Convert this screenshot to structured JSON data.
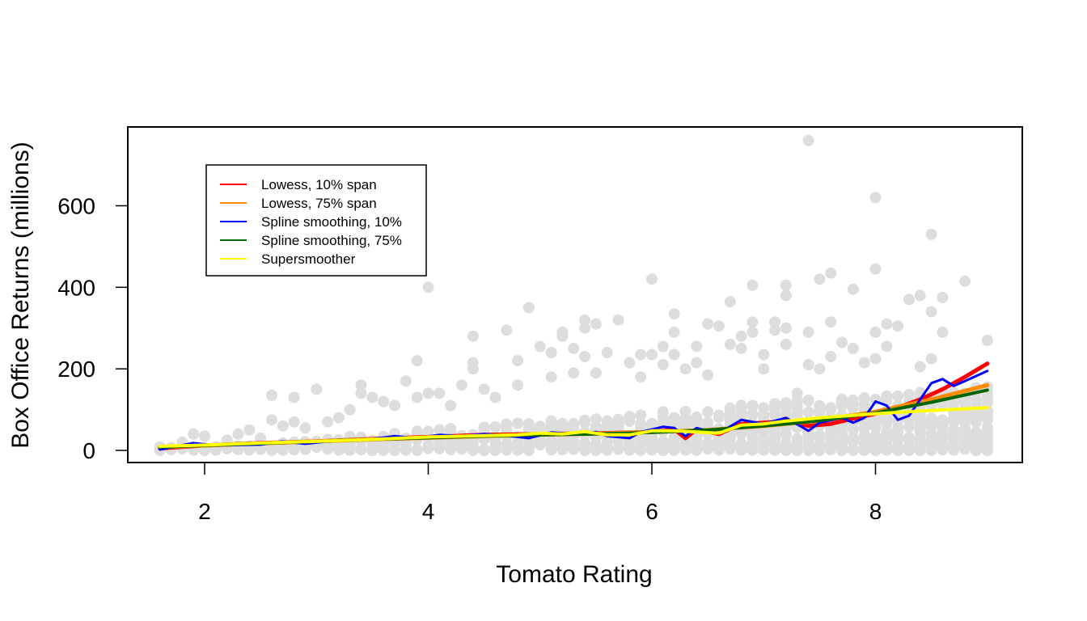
{
  "chart_data": {
    "type": "scatter",
    "title": "",
    "xlabel": "Tomato Rating",
    "ylabel": "Box Office Returns (millions)",
    "xlim": [
      1.3,
      9.5
    ],
    "ylim": [
      -30,
      790
    ],
    "xticks": [
      2,
      4,
      6,
      8
    ],
    "yticks": [
      0,
      200,
      400,
      600
    ],
    "grid": false,
    "legend_position": "top-left",
    "point_color": "#dddddd",
    "scatter_outliers": [
      {
        "x": 1.6,
        "y": 2
      },
      {
        "x": 1.8,
        "y": 20
      },
      {
        "x": 1.9,
        "y": 40
      },
      {
        "x": 2.0,
        "y": 35
      },
      {
        "x": 2.2,
        "y": 25
      },
      {
        "x": 2.3,
        "y": 40
      },
      {
        "x": 2.4,
        "y": 50
      },
      {
        "x": 2.5,
        "y": 30
      },
      {
        "x": 2.6,
        "y": 135
      },
      {
        "x": 2.6,
        "y": 75
      },
      {
        "x": 2.7,
        "y": 60
      },
      {
        "x": 2.8,
        "y": 130
      },
      {
        "x": 2.8,
        "y": 70
      },
      {
        "x": 2.9,
        "y": 55
      },
      {
        "x": 3.0,
        "y": 150
      },
      {
        "x": 3.1,
        "y": 70
      },
      {
        "x": 3.2,
        "y": 80
      },
      {
        "x": 3.3,
        "y": 100
      },
      {
        "x": 3.4,
        "y": 160
      },
      {
        "x": 3.4,
        "y": 140
      },
      {
        "x": 3.5,
        "y": 130
      },
      {
        "x": 3.6,
        "y": 120
      },
      {
        "x": 3.7,
        "y": 110
      },
      {
        "x": 3.8,
        "y": 170
      },
      {
        "x": 3.9,
        "y": 220
      },
      {
        "x": 3.9,
        "y": 130
      },
      {
        "x": 4.0,
        "y": 400
      },
      {
        "x": 4.0,
        "y": 140
      },
      {
        "x": 4.1,
        "y": 140
      },
      {
        "x": 4.2,
        "y": 110
      },
      {
        "x": 4.3,
        "y": 160
      },
      {
        "x": 4.4,
        "y": 280
      },
      {
        "x": 4.4,
        "y": 215
      },
      {
        "x": 4.4,
        "y": 200
      },
      {
        "x": 4.5,
        "y": 150
      },
      {
        "x": 4.6,
        "y": 130
      },
      {
        "x": 4.7,
        "y": 295
      },
      {
        "x": 4.8,
        "y": 220
      },
      {
        "x": 4.8,
        "y": 160
      },
      {
        "x": 4.9,
        "y": 350
      },
      {
        "x": 5.0,
        "y": 255
      },
      {
        "x": 5.1,
        "y": 240
      },
      {
        "x": 5.1,
        "y": 180
      },
      {
        "x": 5.2,
        "y": 290
      },
      {
        "x": 5.2,
        "y": 280
      },
      {
        "x": 5.3,
        "y": 250
      },
      {
        "x": 5.3,
        "y": 190
      },
      {
        "x": 5.4,
        "y": 320
      },
      {
        "x": 5.4,
        "y": 300
      },
      {
        "x": 5.4,
        "y": 230
      },
      {
        "x": 5.5,
        "y": 310
      },
      {
        "x": 5.5,
        "y": 190
      },
      {
        "x": 5.6,
        "y": 240
      },
      {
        "x": 5.7,
        "y": 320
      },
      {
        "x": 5.8,
        "y": 215
      },
      {
        "x": 5.9,
        "y": 235
      },
      {
        "x": 5.9,
        "y": 180
      },
      {
        "x": 6.0,
        "y": 420
      },
      {
        "x": 6.0,
        "y": 235
      },
      {
        "x": 6.1,
        "y": 255
      },
      {
        "x": 6.1,
        "y": 210
      },
      {
        "x": 6.2,
        "y": 335
      },
      {
        "x": 6.2,
        "y": 290
      },
      {
        "x": 6.2,
        "y": 235
      },
      {
        "x": 6.3,
        "y": 200
      },
      {
        "x": 6.4,
        "y": 255
      },
      {
        "x": 6.4,
        "y": 215
      },
      {
        "x": 6.5,
        "y": 310
      },
      {
        "x": 6.5,
        "y": 185
      },
      {
        "x": 6.6,
        "y": 305
      },
      {
        "x": 6.7,
        "y": 365
      },
      {
        "x": 6.7,
        "y": 260
      },
      {
        "x": 6.8,
        "y": 280
      },
      {
        "x": 6.8,
        "y": 250
      },
      {
        "x": 6.9,
        "y": 405
      },
      {
        "x": 6.9,
        "y": 315
      },
      {
        "x": 6.9,
        "y": 290
      },
      {
        "x": 7.0,
        "y": 235
      },
      {
        "x": 7.0,
        "y": 200
      },
      {
        "x": 7.1,
        "y": 315
      },
      {
        "x": 7.1,
        "y": 295
      },
      {
        "x": 7.2,
        "y": 405
      },
      {
        "x": 7.2,
        "y": 380
      },
      {
        "x": 7.2,
        "y": 300
      },
      {
        "x": 7.2,
        "y": 260
      },
      {
        "x": 7.3,
        "y": 140
      },
      {
        "x": 7.4,
        "y": 760
      },
      {
        "x": 7.4,
        "y": 290
      },
      {
        "x": 7.4,
        "y": 210
      },
      {
        "x": 7.5,
        "y": 420
      },
      {
        "x": 7.5,
        "y": 200
      },
      {
        "x": 7.6,
        "y": 435
      },
      {
        "x": 7.6,
        "y": 315
      },
      {
        "x": 7.6,
        "y": 230
      },
      {
        "x": 7.7,
        "y": 265
      },
      {
        "x": 7.8,
        "y": 395
      },
      {
        "x": 7.8,
        "y": 250
      },
      {
        "x": 7.9,
        "y": 215
      },
      {
        "x": 8.0,
        "y": 620
      },
      {
        "x": 8.0,
        "y": 445
      },
      {
        "x": 8.0,
        "y": 290
      },
      {
        "x": 8.0,
        "y": 225
      },
      {
        "x": 8.1,
        "y": 310
      },
      {
        "x": 8.1,
        "y": 255
      },
      {
        "x": 8.2,
        "y": 305
      },
      {
        "x": 8.3,
        "y": 370
      },
      {
        "x": 8.4,
        "y": 380
      },
      {
        "x": 8.4,
        "y": 205
      },
      {
        "x": 8.5,
        "y": 530
      },
      {
        "x": 8.5,
        "y": 340
      },
      {
        "x": 8.5,
        "y": 225
      },
      {
        "x": 8.6,
        "y": 375
      },
      {
        "x": 8.6,
        "y": 290
      },
      {
        "x": 8.7,
        "y": 10
      },
      {
        "x": 8.8,
        "y": 415
      },
      {
        "x": 8.8,
        "y": 45
      },
      {
        "x": 9.0,
        "y": 270
      },
      {
        "x": 9.0,
        "y": 95
      },
      {
        "x": 8.4,
        "y": 20
      },
      {
        "x": 8.3,
        "y": 25
      },
      {
        "x": 8.2,
        "y": 30
      },
      {
        "x": 8.6,
        "y": 75
      },
      {
        "x": 8.5,
        "y": 70
      }
    ],
    "series": [
      {
        "name": "Lowess, 10% span",
        "color": "#ff0000",
        "width": 5,
        "points": [
          [
            1.6,
            5
          ],
          [
            2.0,
            12
          ],
          [
            2.5,
            18
          ],
          [
            3.0,
            22
          ],
          [
            3.5,
            28
          ],
          [
            4.0,
            33
          ],
          [
            4.5,
            38
          ],
          [
            5.0,
            40
          ],
          [
            5.5,
            42
          ],
          [
            6.0,
            45
          ],
          [
            6.2,
            52
          ],
          [
            6.3,
            30
          ],
          [
            6.4,
            52
          ],
          [
            6.6,
            40
          ],
          [
            6.8,
            65
          ],
          [
            7.0,
            68
          ],
          [
            7.2,
            72
          ],
          [
            7.4,
            60
          ],
          [
            7.6,
            65
          ],
          [
            7.8,
            78
          ],
          [
            8.0,
            90
          ],
          [
            8.2,
            105
          ],
          [
            8.4,
            125
          ],
          [
            8.6,
            150
          ],
          [
            8.8,
            180
          ],
          [
            9.0,
            213
          ]
        ]
      },
      {
        "name": "Lowess, 75% span",
        "color": "#ff8c00",
        "width": 5,
        "points": [
          [
            1.6,
            8
          ],
          [
            2.0,
            12
          ],
          [
            2.5,
            17
          ],
          [
            3.0,
            22
          ],
          [
            3.5,
            27
          ],
          [
            4.0,
            31
          ],
          [
            4.5,
            35
          ],
          [
            5.0,
            38
          ],
          [
            5.5,
            41
          ],
          [
            6.0,
            45
          ],
          [
            6.5,
            50
          ],
          [
            7.0,
            60
          ],
          [
            7.5,
            73
          ],
          [
            8.0,
            95
          ],
          [
            8.5,
            125
          ],
          [
            9.0,
            160
          ]
        ]
      },
      {
        "name": "Spline smoothing, 10%",
        "color": "#0000ff",
        "width": 3,
        "points": [
          [
            1.6,
            2
          ],
          [
            1.9,
            18
          ],
          [
            2.1,
            12
          ],
          [
            2.5,
            14
          ],
          [
            2.7,
            22
          ],
          [
            2.9,
            16
          ],
          [
            3.2,
            25
          ],
          [
            3.5,
            28
          ],
          [
            3.7,
            35
          ],
          [
            3.9,
            30
          ],
          [
            4.1,
            38
          ],
          [
            4.3,
            35
          ],
          [
            4.5,
            40
          ],
          [
            4.7,
            36
          ],
          [
            4.9,
            30
          ],
          [
            5.1,
            44
          ],
          [
            5.3,
            40
          ],
          [
            5.5,
            45
          ],
          [
            5.6,
            35
          ],
          [
            5.8,
            30
          ],
          [
            5.9,
            45
          ],
          [
            6.1,
            58
          ],
          [
            6.2,
            55
          ],
          [
            6.3,
            35
          ],
          [
            6.4,
            55
          ],
          [
            6.6,
            42
          ],
          [
            6.8,
            75
          ],
          [
            7.0,
            65
          ],
          [
            7.2,
            80
          ],
          [
            7.4,
            48
          ],
          [
            7.5,
            68
          ],
          [
            7.7,
            80
          ],
          [
            7.8,
            68
          ],
          [
            7.9,
            80
          ],
          [
            8.0,
            120
          ],
          [
            8.1,
            110
          ],
          [
            8.2,
            75
          ],
          [
            8.3,
            85
          ],
          [
            8.4,
            125
          ],
          [
            8.5,
            165
          ],
          [
            8.6,
            175
          ],
          [
            8.7,
            158
          ],
          [
            8.8,
            170
          ],
          [
            9.0,
            195
          ]
        ]
      },
      {
        "name": "Spline smoothing, 75%",
        "color": "#006400",
        "width": 4,
        "points": [
          [
            1.6,
            8
          ],
          [
            2.0,
            12
          ],
          [
            2.5,
            17
          ],
          [
            3.0,
            22
          ],
          [
            3.5,
            27
          ],
          [
            4.0,
            31
          ],
          [
            4.5,
            35
          ],
          [
            5.0,
            38
          ],
          [
            5.5,
            40
          ],
          [
            6.0,
            44
          ],
          [
            6.5,
            50
          ],
          [
            7.0,
            60
          ],
          [
            7.5,
            73
          ],
          [
            8.0,
            92
          ],
          [
            8.5,
            118
          ],
          [
            9.0,
            148
          ]
        ]
      },
      {
        "name": "Supersmoother",
        "color": "#ffff00",
        "width": 4,
        "points": [
          [
            1.6,
            10
          ],
          [
            2.0,
            13
          ],
          [
            2.5,
            18
          ],
          [
            3.0,
            22
          ],
          [
            3.5,
            27
          ],
          [
            4.0,
            33
          ],
          [
            4.5,
            36
          ],
          [
            4.8,
            38
          ],
          [
            5.0,
            42
          ],
          [
            5.2,
            40
          ],
          [
            5.4,
            46
          ],
          [
            5.6,
            38
          ],
          [
            5.8,
            38
          ],
          [
            6.0,
            48
          ],
          [
            6.2,
            48
          ],
          [
            6.4,
            45
          ],
          [
            6.6,
            42
          ],
          [
            6.8,
            62
          ],
          [
            7.0,
            65
          ],
          [
            7.2,
            72
          ],
          [
            7.5,
            80
          ],
          [
            8.0,
            90
          ],
          [
            8.5,
            98
          ],
          [
            9.0,
            105
          ]
        ]
      }
    ]
  }
}
